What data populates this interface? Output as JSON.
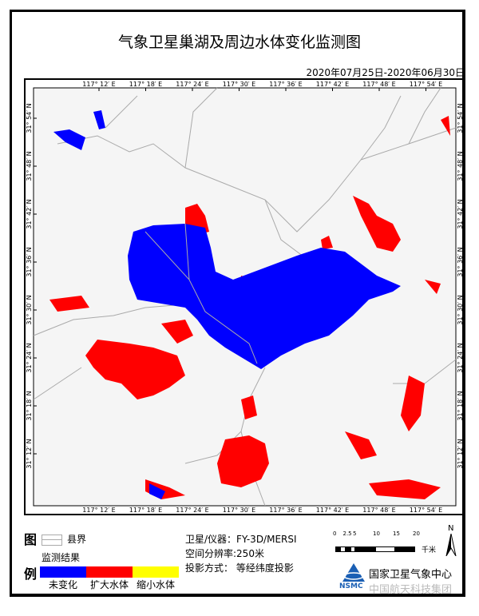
{
  "title": "气象卫星巢湖及周边水体变化监测图",
  "date_range": "2020年07月25日-2020年06月30日",
  "map": {
    "lon_labels": [
      "117° 12′ E",
      "117° 18′ E",
      "117° 24′ E",
      "117° 30′ E",
      "117° 36′ E",
      "117° 42′ E",
      "117° 48′ E",
      "117° 54′ E"
    ],
    "lat_labels": [
      "31° 54′ N",
      "31° 48′ N",
      "31° 42′ N",
      "31° 36′ N",
      "31° 30′ N",
      "31° 24′ N",
      "31° 18′ N",
      "31° 12′ N"
    ],
    "colors": {
      "unchanged": "#0000FF",
      "expanded": "#FF0000",
      "shrunk": "#FFFF00",
      "background": "#F5F5F5",
      "boundary": "#AAAAAA"
    }
  },
  "legend": {
    "char_top": "图",
    "char_bottom": "例",
    "boundary_label": "县界",
    "result_heading": "监测结果",
    "classes": [
      {
        "label": "未变化",
        "color": "#0000FF"
      },
      {
        "label": "扩大水体",
        "color": "#FF0000"
      },
      {
        "label": "缩小水体",
        "color": "#FFFF00"
      }
    ]
  },
  "info": {
    "satellite": "卫星/仪器：FY-3D/MERSI",
    "resolution": "空间分辨率:250米",
    "projection": "投影方式：  等经纬度投影"
  },
  "scalebar": {
    "ticks": [
      "0",
      "2.5",
      "5",
      "10",
      "15",
      "20"
    ],
    "unit": "千米"
  },
  "north": "N",
  "org": {
    "name": "国家卫星气象中心",
    "abbr": "NSMC"
  },
  "watermark": "中国航天科技集团"
}
